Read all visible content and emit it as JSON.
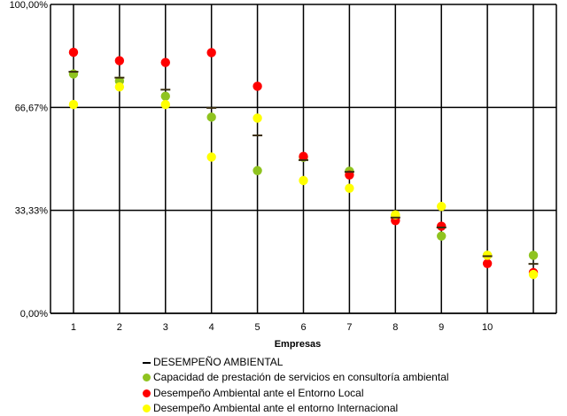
{
  "chart_data": {
    "type": "scatter",
    "xlabel": "Empresas",
    "ylabel": "",
    "yticks": [
      "0,00%",
      "33,33%",
      "66,67%",
      "100,00%"
    ],
    "ylim": [
      0,
      100
    ],
    "x": [
      1,
      2,
      3,
      4,
      5,
      6,
      7,
      8,
      9,
      10,
      11
    ],
    "xtick_labels": [
      "1",
      "2",
      "3",
      "4",
      "5",
      "6",
      "7",
      "8",
      "9",
      "10",
      ""
    ],
    "grid": true,
    "legend_position": "bottom",
    "series": [
      {
        "name": "DESEMPEÑO AMBIENTAL",
        "marker": "dash",
        "color": "#000000",
        "values": [
          78.2,
          76.3,
          72.4,
          66.5,
          57.6,
          49.6,
          45.8,
          31.0,
          27.8,
          18.5,
          16.0
        ]
      },
      {
        "name": "Capacidad de prestación de servicios en consultoría ambiental",
        "marker": "dot",
        "color": "#8fc31f",
        "values": [
          77.5,
          75.2,
          70.3,
          63.5,
          46.2,
          50.5,
          46.0,
          31.8,
          25.0,
          18.8,
          18.8
        ]
      },
      {
        "name": "Desempeño Ambiental ante el Entorno Local",
        "marker": "dot",
        "color": "#ff0000",
        "values": [
          84.5,
          81.8,
          81.2,
          84.4,
          73.5,
          50.8,
          44.8,
          30.0,
          28.2,
          16.1,
          13.2
        ]
      },
      {
        "name": "Desempeño Ambiental ante el entorno Internacional",
        "marker": "dot",
        "color": "#ffff00",
        "values": [
          67.6,
          73.3,
          67.6,
          50.6,
          63.2,
          43.0,
          40.5,
          31.9,
          34.6,
          18.8,
          12.6
        ]
      }
    ]
  }
}
